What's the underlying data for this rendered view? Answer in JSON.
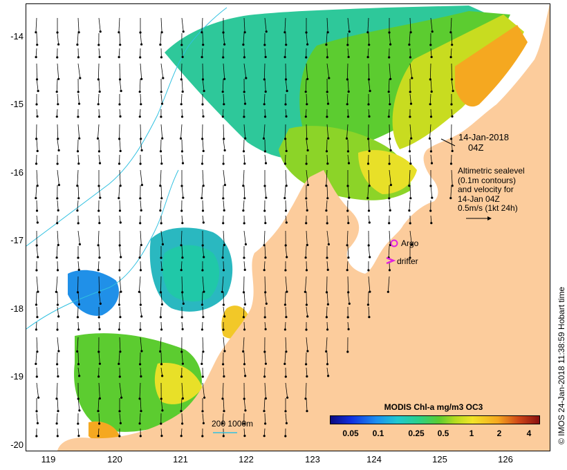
{
  "map": {
    "y_ticks": [
      "-14",
      "-15",
      "-16",
      "-17",
      "-18",
      "-19",
      "-20"
    ],
    "x_ticks": [
      "119",
      "120",
      "121",
      "122",
      "123",
      "124",
      "125",
      "126"
    ],
    "date_label_line1": "14-Jan-2018",
    "date_label_line2": "04Z",
    "altimetry_lines": [
      "Altimetric sealevel",
      "(0.1m contours)",
      "and velocity for",
      "14-Jan 04Z",
      "0.5m/s (1kt 24h)"
    ],
    "argo_label": "Argo",
    "drifter_label": "drifter",
    "bathymetry_label": "200  1000m",
    "colors": {
      "land": "#fccc9c",
      "ocean": "#ffffff",
      "contour": "#30c0e0",
      "argo": "#e020e0",
      "drifter": "#e020e0"
    }
  },
  "colorbar": {
    "title": "MODIS Chl-a mg/m3 OC3",
    "tick_labels": [
      "0.05",
      "0.1",
      "0.25",
      "0.5",
      "1",
      "2",
      "4"
    ]
  },
  "credit": "© IMOS 24-Jan-2018 11:38:59 Hobart time"
}
